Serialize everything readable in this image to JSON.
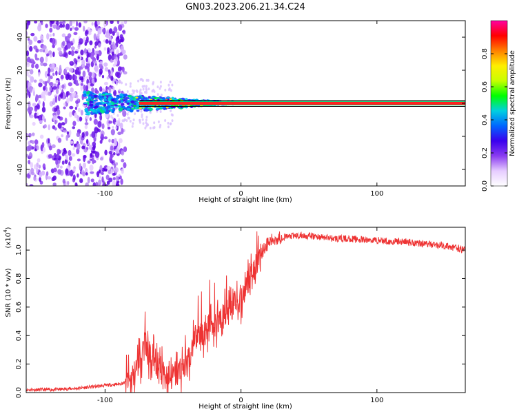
{
  "title": "GN03.2023.206.21.34.C24",
  "chart_data": [
    {
      "type": "heatmap",
      "name": "spectrogram",
      "xlabel": "Height of straight line (km)",
      "ylabel": "Frequency (Hz)",
      "xlim": [
        -158,
        165
      ],
      "ylim": [
        -50,
        50
      ],
      "xticks": [
        -100,
        0,
        100
      ],
      "xtick_labels": [
        "-100",
        "0",
        "100"
      ],
      "yticks": [
        -40,
        -20,
        0,
        20,
        40
      ],
      "ytick_labels": [
        "-40",
        "-20",
        "0",
        "20",
        "40"
      ],
      "colorbar": {
        "label": "Normalized spectral amplitude",
        "range": [
          0.0,
          1.0
        ],
        "ticks": [
          0.0,
          0.2,
          0.4,
          0.6,
          0.8
        ],
        "tick_labels": [
          "0.0",
          "0.2",
          "0.4",
          "0.6",
          "0.8"
        ],
        "colors": [
          "#ffffff",
          "#e6ccff",
          "#8a3cf0",
          "#3a00ee",
          "#0066ff",
          "#00d0e0",
          "#00ff00",
          "#c8ff00",
          "#ffee00",
          "#ff8000",
          "#ff0000",
          "#ff00a0"
        ]
      },
      "features": {
        "carrier_line": {
          "frequency": 0,
          "x_from": -75,
          "x_to": 165
        },
        "noise_band": {
          "x_from": -158,
          "x_to": -85,
          "frequency_spread": 50
        }
      },
      "grid": false
    },
    {
      "type": "line",
      "name": "snr",
      "xlabel": "Height of straight line (km)",
      "ylabel": "SNR (10 * v/v)",
      "y_multiplier_label": "(x10",
      "y_multiplier_exp": "4",
      "xlim": [
        -158,
        165
      ],
      "ylim": [
        0,
        1.16
      ],
      "xticks": [
        -100,
        0,
        100
      ],
      "xtick_labels": [
        "-100",
        "0",
        "100"
      ],
      "yticks": [
        0.0,
        0.2,
        0.4,
        0.6,
        0.8,
        1.0
      ],
      "ytick_labels": [
        "0.0",
        "0.2",
        "0.4",
        "0.6",
        "0.8",
        "1.0"
      ],
      "series": [
        {
          "color": "#ee3333",
          "x": [
            -158,
            -140,
            -120,
            -100,
            -90,
            -85,
            -80,
            -77,
            -74,
            -71,
            -68,
            -65,
            -62,
            -59,
            -56,
            -53,
            -50,
            -47,
            -44,
            -41,
            -38,
            -35,
            -32,
            -29,
            -26,
            -23,
            -20,
            -17,
            -14,
            -11,
            -8,
            -5,
            -2,
            1,
            4,
            7,
            10,
            13,
            16,
            19,
            22,
            25,
            30,
            40,
            50,
            60,
            70,
            80,
            90,
            100,
            110,
            120,
            130,
            140,
            150,
            160,
            165
          ],
          "y": [
            0.02,
            0.02,
            0.03,
            0.05,
            0.06,
            0.07,
            0.09,
            0.17,
            0.25,
            0.33,
            0.27,
            0.24,
            0.19,
            0.16,
            0.13,
            0.12,
            0.11,
            0.13,
            0.17,
            0.21,
            0.26,
            0.33,
            0.4,
            0.39,
            0.41,
            0.47,
            0.46,
            0.52,
            0.49,
            0.57,
            0.55,
            0.61,
            0.64,
            0.69,
            0.75,
            0.8,
            0.88,
            0.95,
            1.0,
            1.04,
            1.06,
            1.08,
            1.09,
            1.1,
            1.1,
            1.09,
            1.08,
            1.08,
            1.07,
            1.07,
            1.06,
            1.06,
            1.05,
            1.04,
            1.03,
            1.01,
            1.0
          ]
        }
      ],
      "grid": false
    }
  ]
}
